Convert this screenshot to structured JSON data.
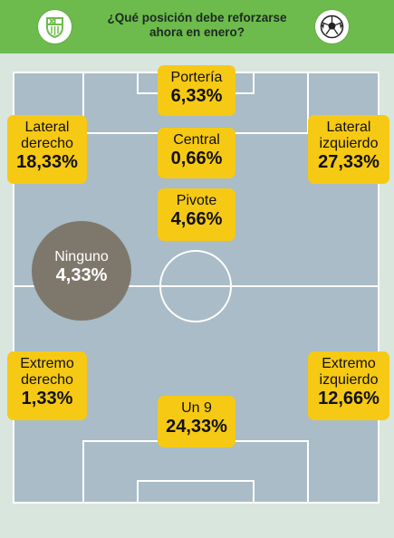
{
  "header": {
    "title_line1": "¿Qué posición debe reforzarse",
    "title_line2": "ahora en enero?",
    "left_emblem": "fc-barcelona-crest-icon",
    "right_emblem": "soccer-ball-icon"
  },
  "colors": {
    "header_green": "#6cbb4c",
    "pitch": "#a9bcc7",
    "label_yellow": "#f6c914",
    "ninguno_gray": "#7e786c"
  },
  "positions": {
    "porteria": {
      "name": "Portería",
      "pct": "6,33%"
    },
    "central": {
      "name": "Central",
      "pct": "0,66%"
    },
    "pivote": {
      "name": "Pivote",
      "pct": "4,66%"
    },
    "lateral_derecho": {
      "name_line1": "Lateral",
      "name_line2": "derecho",
      "pct": "18,33%"
    },
    "lateral_izquierdo": {
      "name_line1": "Lateral",
      "name_line2": "izquierdo",
      "pct": "27,33%"
    },
    "ninguno": {
      "name": "Ninguno",
      "pct": "4,33%"
    },
    "extremo_derecho": {
      "name_line1": "Extremo",
      "name_line2": "derecho",
      "pct": "1,33%"
    },
    "extremo_izquierdo": {
      "name_line1": "Extremo",
      "name_line2": "izquierdo",
      "pct": "12,66%"
    },
    "un9": {
      "name": "Un 9",
      "pct": "24,33%"
    }
  }
}
